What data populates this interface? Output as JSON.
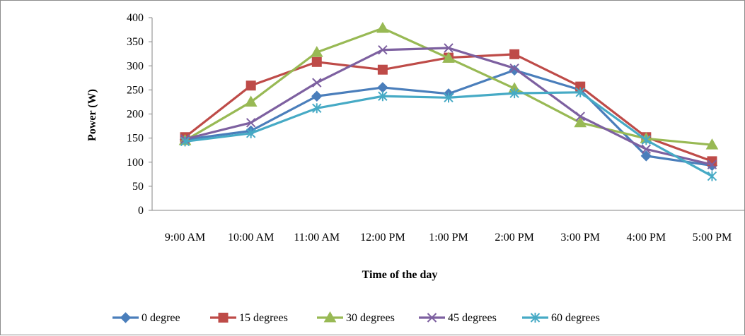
{
  "chart_data": {
    "type": "line",
    "title": "",
    "xlabel": "Time of the day",
    "ylabel": "Power (W)",
    "ylim": [
      0,
      400
    ],
    "yticks": [
      0,
      50,
      100,
      150,
      200,
      250,
      300,
      350,
      400
    ],
    "categories": [
      "9:00 AM",
      "10:00 AM",
      "11:00 AM",
      "12:00 PM",
      "1:00 PM",
      "2:00 PM",
      "3:00 PM",
      "4:00 PM",
      "5:00 PM"
    ],
    "grid": false,
    "legend_position": "bottom",
    "series": [
      {
        "name": "0 degree",
        "color": "#4a7ebb",
        "marker": "diamond",
        "values": [
          147,
          165,
          237,
          255,
          242,
          291,
          250,
          113,
          93
        ]
      },
      {
        "name": "15 degrees",
        "color": "#be4b48",
        "marker": "square",
        "values": [
          152,
          259,
          308,
          292,
          317,
          324,
          257,
          152,
          102
        ]
      },
      {
        "name": "30 degrees",
        "color": "#98b954",
        "marker": "triangle",
        "values": [
          145,
          225,
          328,
          378,
          316,
          253,
          182,
          149,
          136
        ]
      },
      {
        "name": "45 degrees",
        "color": "#7d60a0",
        "marker": "x",
        "values": [
          148,
          182,
          265,
          333,
          337,
          295,
          195,
          127,
          95
        ]
      },
      {
        "name": "60 degrees",
        "color": "#46aac5",
        "marker": "star",
        "values": [
          143,
          160,
          212,
          237,
          234,
          243,
          245,
          146,
          71
        ]
      }
    ]
  }
}
